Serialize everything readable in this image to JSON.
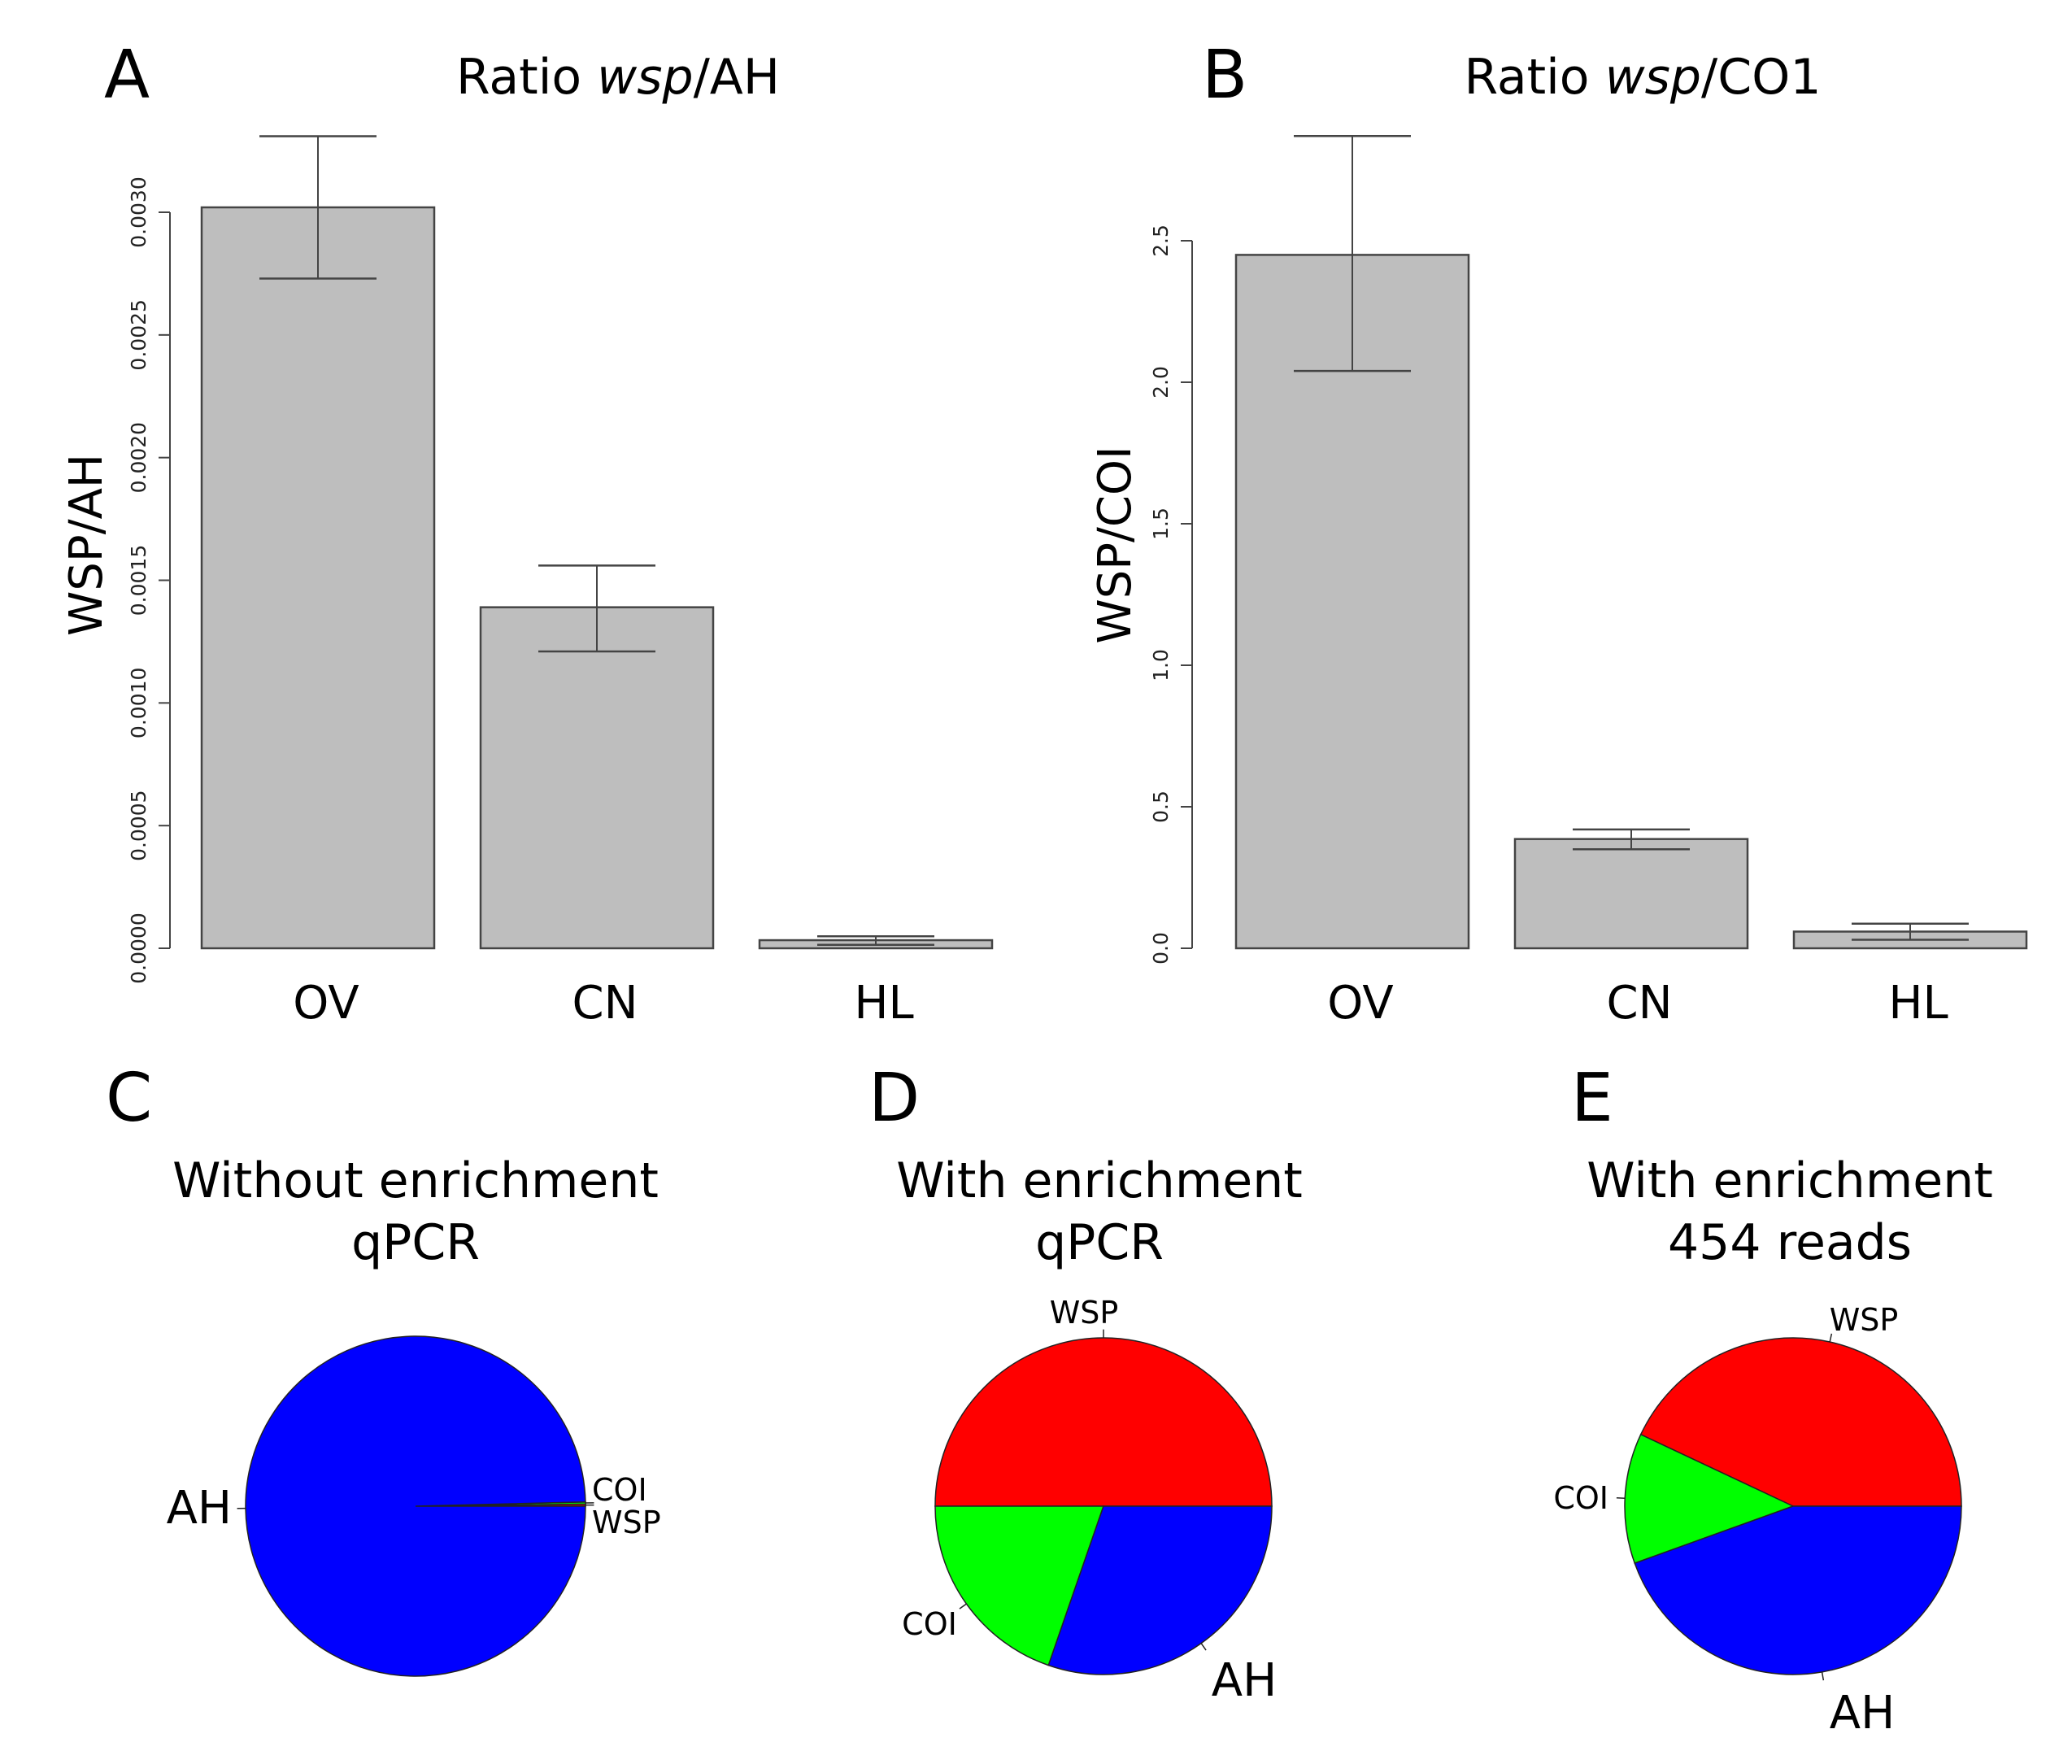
{
  "chart_data": [
    {
      "panel": "A",
      "type": "bar",
      "title_prefix": "Ratio ",
      "title_italic": "wsp",
      "title_suffix": "/AH",
      "ylabel": "WSP/AH",
      "xlabel": "",
      "categories": [
        "OV",
        "CN",
        "HL"
      ],
      "values": [
        0.00302,
        0.00139,
        3.3e-05
      ],
      "error_low": [
        0.00273,
        0.00121,
        1.4e-05
      ],
      "error_high": [
        0.00331,
        0.00156,
        4.9e-05
      ],
      "ylim": [
        0,
        0.003
      ],
      "yticks": [
        "0.0000",
        "0.0005",
        "0.0010",
        "0.0015",
        "0.0020",
        "0.0025",
        "0.0030"
      ],
      "ytick_values": [
        0,
        0.0005,
        0.001,
        0.0015,
        0.002,
        0.0025,
        0.003
      ],
      "bar_color": "#bebebe",
      "grid": false
    },
    {
      "panel": "B",
      "type": "bar",
      "title_prefix": "Ratio ",
      "title_italic": "wsp",
      "title_suffix": "/CO1",
      "ylabel": "WSP/COI",
      "xlabel": "",
      "categories": [
        "OV",
        "CN",
        "HL"
      ],
      "values": [
        2.45,
        0.386,
        0.059
      ],
      "error_low": [
        2.04,
        0.35,
        0.03
      ],
      "error_high": [
        2.87,
        0.42,
        0.087
      ],
      "ylim": [
        0,
        2.5
      ],
      "yticks": [
        "0.0",
        "0.5",
        "1.0",
        "1.5",
        "2.0",
        "2.5"
      ],
      "ytick_values": [
        0,
        0.5,
        1.0,
        1.5,
        2.0,
        2.5
      ],
      "bar_color": "#bebebe",
      "grid": false
    },
    {
      "panel": "C",
      "type": "pie",
      "title_line1": "Without enrichment",
      "title_line2": "qPCR",
      "labels": [
        "WSP",
        "COI",
        "AH"
      ],
      "values": [
        0.002,
        0.002,
        0.996
      ],
      "colors": [
        "#ff0000",
        "#00ff00",
        "#0000ff"
      ]
    },
    {
      "panel": "D",
      "type": "pie",
      "title_line1": "With enrichment",
      "title_line2": "qPCR",
      "labels": [
        "WSP",
        "COI",
        "AH"
      ],
      "values": [
        0.5,
        0.197,
        0.303
      ],
      "colors": [
        "#ff0000",
        "#00ff00",
        "#0000ff"
      ]
    },
    {
      "panel": "E",
      "type": "pie",
      "title_line1": "With enrichment",
      "title_line2": "454 reads",
      "labels": [
        "WSP",
        "COI",
        "AH"
      ],
      "values": [
        0.43,
        0.125,
        0.445
      ],
      "colors": [
        "#ff0000",
        "#00ff00",
        "#0000ff"
      ]
    }
  ]
}
